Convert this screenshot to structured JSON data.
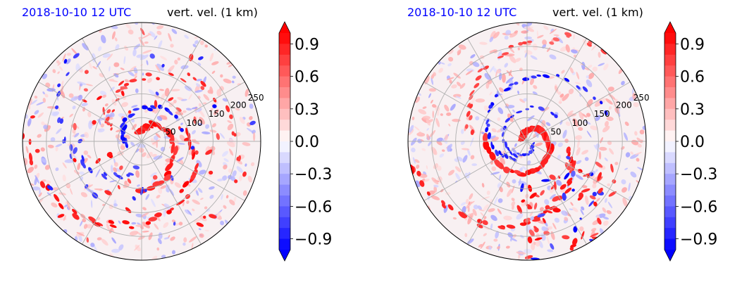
{
  "colors": {
    "positive": "#ff0000",
    "negative": "#0000ff",
    "neutral": "#ffffff",
    "grid": "#b0b0b0",
    "title_left": "#0000ff"
  },
  "chart_data": [
    {
      "type": "heatmap",
      "subtype": "polar-contourf",
      "title_left": "2018-10-10 12 UTC",
      "title_right": "vert. vel. (1 km)",
      "radial_ticks": [
        "50",
        "100",
        "150",
        "200",
        "250"
      ],
      "colorbar": {
        "ticks": [
          "0.9",
          "0.6",
          "0.3",
          "0.0",
          "−0.3",
          "−0.6",
          "−0.9"
        ],
        "range": [
          -1.0,
          1.0
        ],
        "extend": "both",
        "cmap": "bwr"
      }
    },
    {
      "type": "heatmap",
      "subtype": "polar-contourf",
      "title_left": "2018-10-10 12 UTC",
      "title_right": "vert. vel. (1 km)",
      "radial_ticks": [
        "50",
        "100",
        "150",
        "200",
        "250"
      ],
      "colorbar": {
        "ticks": [
          "0.9",
          "0.6",
          "0.3",
          "0.0",
          "−0.3",
          "−0.6",
          "−0.9"
        ],
        "range": [
          -1.0,
          1.0
        ],
        "extend": "both",
        "cmap": "bwr"
      }
    }
  ]
}
